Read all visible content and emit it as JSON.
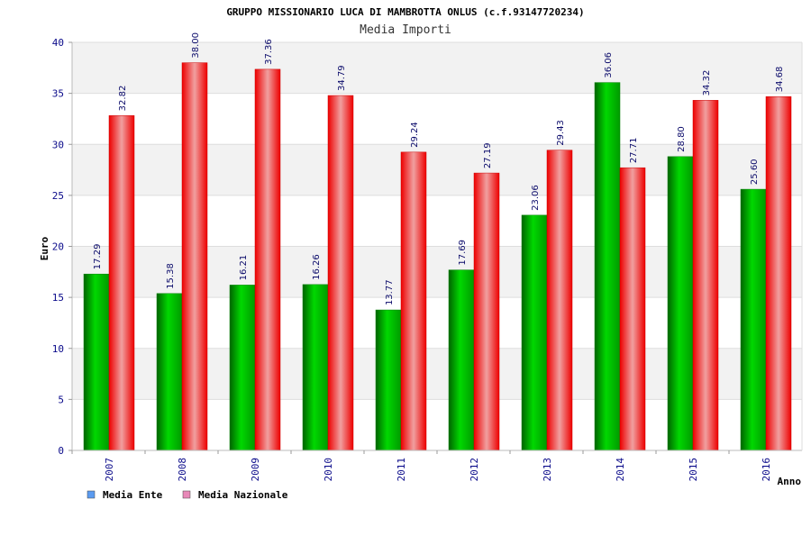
{
  "chart_data": {
    "type": "bar",
    "title": "GRUPPO MISSIONARIO LUCA DI MAMBROTTA ONLUS (c.f.93147720234)",
    "subtitle": "Media Importi",
    "xlabel": "Anno",
    "ylabel": "Euro",
    "ylim": [
      0,
      40
    ],
    "yticks": [
      0,
      5,
      10,
      15,
      20,
      25,
      30,
      35,
      40
    ],
    "grid": true,
    "legend_position": "bottom-left",
    "categories": [
      "2007",
      "2008",
      "2009",
      "2010",
      "2011",
      "2012",
      "2013",
      "2014",
      "2015",
      "2016"
    ],
    "series": [
      {
        "name": "Media Ente",
        "values": [
          17.29,
          15.38,
          16.21,
          16.26,
          13.77,
          17.69,
          23.06,
          36.06,
          28.8,
          25.6
        ],
        "labels": [
          "17.29",
          "15.38",
          "16.21",
          "16.26",
          "13.77",
          "17.69",
          "23.06",
          "36.06",
          "28.80",
          "25.60"
        ],
        "color": "#00c000",
        "legend_color": "#5b9bf0"
      },
      {
        "name": "Media Nazionale",
        "values": [
          32.82,
          38.0,
          37.36,
          34.79,
          29.24,
          27.19,
          29.43,
          27.71,
          34.32,
          34.68
        ],
        "labels": [
          "32.82",
          "38.00",
          "37.36",
          "34.79",
          "29.24",
          "27.19",
          "29.43",
          "27.71",
          "34.32",
          "34.68"
        ],
        "color": "#f01010",
        "legend_color": "#e889b8"
      }
    ]
  }
}
